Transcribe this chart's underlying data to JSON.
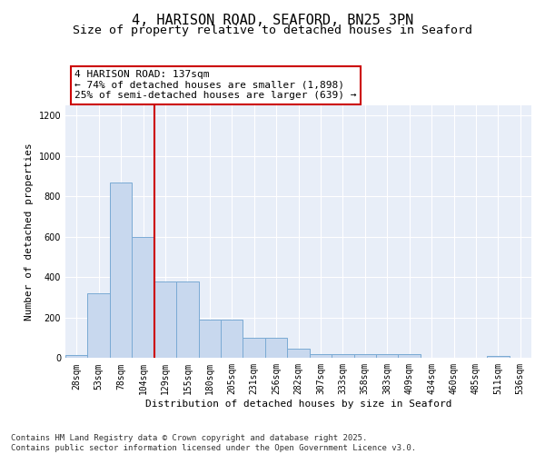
{
  "title_line1": "4, HARISON ROAD, SEAFORD, BN25 3PN",
  "title_line2": "Size of property relative to detached houses in Seaford",
  "xlabel": "Distribution of detached houses by size in Seaford",
  "ylabel": "Number of detached properties",
  "categories": [
    "28sqm",
    "53sqm",
    "78sqm",
    "104sqm",
    "129sqm",
    "155sqm",
    "180sqm",
    "205sqm",
    "231sqm",
    "256sqm",
    "282sqm",
    "307sqm",
    "333sqm",
    "358sqm",
    "383sqm",
    "409sqm",
    "434sqm",
    "460sqm",
    "485sqm",
    "511sqm",
    "536sqm"
  ],
  "values": [
    15,
    320,
    870,
    600,
    380,
    380,
    190,
    190,
    100,
    100,
    45,
    20,
    20,
    20,
    18,
    18,
    0,
    0,
    0,
    10,
    0
  ],
  "bar_color": "#c8d8ee",
  "bar_edge_color": "#7aaced4",
  "vline_color": "#cc0000",
  "annotation_text": "4 HARISON ROAD: 137sqm\n← 74% of detached houses are smaller (1,898)\n25% of semi-detached houses are larger (639) →",
  "ylim_max": 1250,
  "yticks": [
    0,
    200,
    400,
    600,
    800,
    1000,
    1200
  ],
  "plot_bg_color": "#e8eef8",
  "background_color": "#ffffff",
  "grid_color": "#ffffff",
  "footer_line1": "Contains HM Land Registry data © Crown copyright and database right 2025.",
  "footer_line2": "Contains public sector information licensed under the Open Government Licence v3.0.",
  "title_fontsize": 11,
  "subtitle_fontsize": 9.5,
  "axis_label_fontsize": 8,
  "tick_fontsize": 7,
  "footer_fontsize": 6.5
}
